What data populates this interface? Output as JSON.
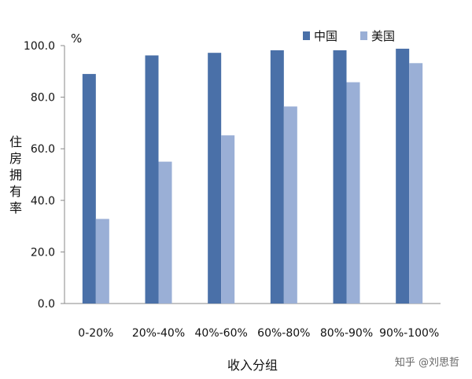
{
  "chart_data": {
    "type": "bar",
    "categories": [
      "0-20%",
      "20%-40%",
      "40%-60%",
      "60%-80%",
      "80%-90%",
      "90%-100%"
    ],
    "series": [
      {
        "name": "中国",
        "color": "#4a70a8",
        "values": [
          89.0,
          96.2,
          97.2,
          98.2,
          98.2,
          98.8
        ]
      },
      {
        "name": "美国",
        "color": "#9aafd6",
        "values": [
          32.8,
          55.0,
          65.2,
          76.4,
          85.8,
          93.2
        ]
      }
    ],
    "ylim": [
      0,
      100
    ],
    "yticks": [
      "0.0",
      "20.0",
      "40.0",
      "60.0",
      "80.0",
      "100.0"
    ],
    "ytick_values": [
      0,
      20,
      40,
      60,
      80,
      100
    ],
    "yunit": "%",
    "xlabel": "收入分组",
    "ylabel": "住房拥有率",
    "legend_position": "top-right",
    "grid": false
  },
  "watermark": "知乎 @刘思哲"
}
